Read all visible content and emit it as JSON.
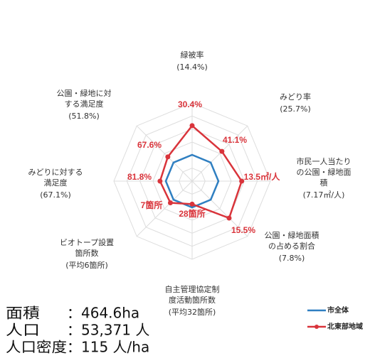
{
  "chart_data": {
    "type": "radar",
    "categories": [
      [
        "緑被率"
      ],
      [
        "みどり率"
      ],
      [
        "市民一人当たり",
        "の公園・緑地面",
        "積"
      ],
      [
        "公園・緑地面積",
        "の占める割合"
      ],
      [
        "自主管理協定制",
        "度活動箇所数"
      ],
      [
        "ビオトープ設置",
        "箇所数"
      ],
      [
        "みどりに対する",
        "満足度"
      ],
      [
        "公園・緑地に対",
        "する満足度"
      ]
    ],
    "series": [
      {
        "name": "市全体",
        "color": "#2f7fc1",
        "values": [
          14.4,
          25.7,
          7.17,
          7.8,
          32,
          6,
          67.1,
          51.8
        ],
        "value_labels": [
          "(14.4%)",
          "(25.7%)",
          "(7.17㎡/人)",
          "(7.8%)",
          "(平均32箇所)",
          "(平均6箇所)",
          "(67.1%)",
          "(51.8%)"
        ]
      },
      {
        "name": "北東部地域",
        "color": "#d9343b",
        "values": [
          30.4,
          41.1,
          13.5,
          15.5,
          28,
          7,
          81.8,
          67.6
        ],
        "value_labels": [
          "30.4%",
          "41.1%",
          "13.5㎡/人",
          "15.5%",
          "28箇所",
          "7箇所",
          "81.8%",
          "67.6%"
        ]
      }
    ]
  },
  "info": [
    {
      "label": "面積",
      "value": "：464.6ha"
    },
    {
      "label": "人口",
      "value": "：53,371 人"
    },
    {
      "label": "人口密度",
      "value": "：115 人/ha"
    }
  ]
}
